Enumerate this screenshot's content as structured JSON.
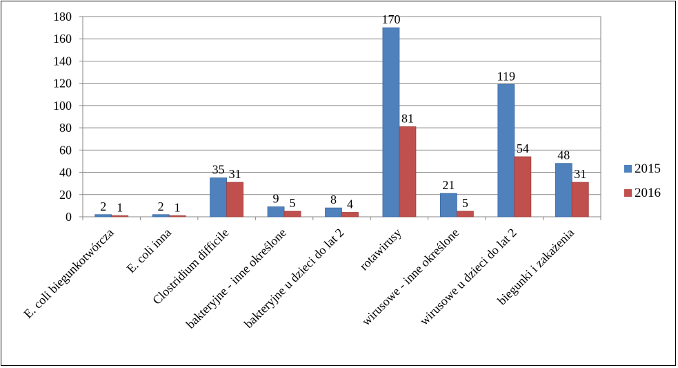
{
  "chart_data": {
    "type": "bar",
    "categories": [
      "E. coli biegunkotwórcza",
      "E. coli inna",
      "Clostridium difficile",
      "bakteryjne - inne określone",
      "bakteryjne u dzieci do lat 2",
      "rotawirusy",
      "wirusowe - inne określone",
      "wirusowe u dzieci do lat 2",
      "biegunki i zakażenia"
    ],
    "series": [
      {
        "name": "2015",
        "color": "#4F81BD",
        "values": [
          2,
          2,
          35,
          9,
          8,
          170,
          21,
          119,
          48
        ]
      },
      {
        "name": "2016",
        "color": "#C0504D",
        "values": [
          1,
          1,
          31,
          5,
          4,
          81,
          5,
          54,
          31
        ]
      }
    ],
    "ylim": [
      0,
      180
    ],
    "yticks": [
      "0",
      "20",
      "40",
      "60",
      "80",
      "100",
      "120",
      "140",
      "160",
      "180"
    ],
    "grid": true,
    "legend": "right",
    "title": "",
    "xlabel": "",
    "ylabel": ""
  }
}
